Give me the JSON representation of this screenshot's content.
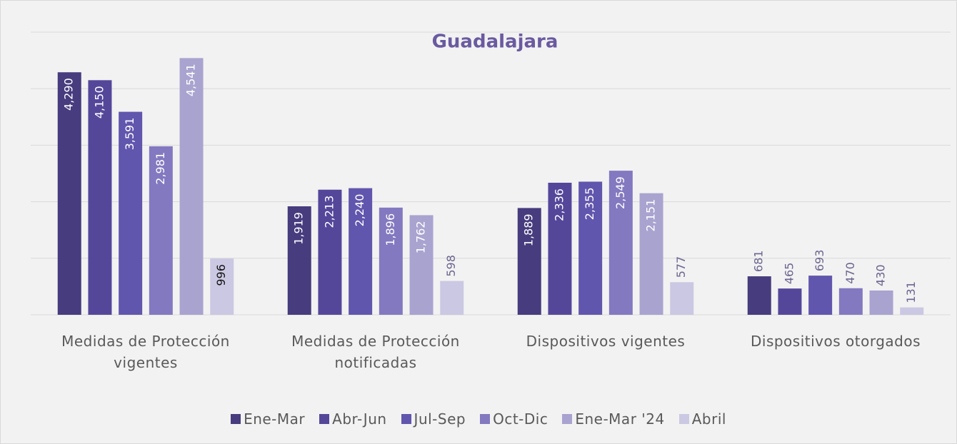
{
  "chart_data": {
    "type": "bar",
    "title": "Guadalajara",
    "categories": [
      "Medidas de Protección vigentes",
      "Medidas de Protección notificadas",
      "Dispositivos vigentes",
      "Dispositivos otorgados"
    ],
    "series": [
      {
        "name": "Ene-Mar",
        "color": "#463c7e",
        "values": [
          4290,
          1919,
          1889,
          681
        ],
        "value_labels": [
          "4,290",
          "1,919",
          "1,889",
          "681"
        ]
      },
      {
        "name": "Abr-Jun",
        "color": "#54479a",
        "values": [
          4150,
          2213,
          2336,
          465
        ],
        "value_labels": [
          "4,150",
          "2,213",
          "2,336",
          "465"
        ]
      },
      {
        "name": "Jul-Sep",
        "color": "#6156ad",
        "values": [
          3591,
          2240,
          2355,
          693
        ],
        "value_labels": [
          "3,591",
          "2,240",
          "2,355",
          "693"
        ]
      },
      {
        "name": "Oct-Dic",
        "color": "#8379c0",
        "values": [
          2981,
          1896,
          2549,
          470
        ],
        "value_labels": [
          "2,981",
          "1,896",
          "2,549",
          "470"
        ]
      },
      {
        "name": "Ene-Mar '24",
        "color": "#a9a3d0",
        "values": [
          4541,
          1762,
          2151,
          430
        ],
        "value_labels": [
          "4,541",
          "1,762",
          "2,151",
          "430"
        ]
      },
      {
        "name": "Abril",
        "color": "#cbc8e3",
        "values": [
          996,
          598,
          577,
          131
        ],
        "value_labels": [
          "996",
          "598",
          "577",
          "131"
        ]
      }
    ],
    "ylim": [
      0,
      5000
    ],
    "yticks": [
      0,
      1000,
      2000,
      3000,
      4000,
      5000
    ],
    "grid": true,
    "legend": "bottom"
  }
}
